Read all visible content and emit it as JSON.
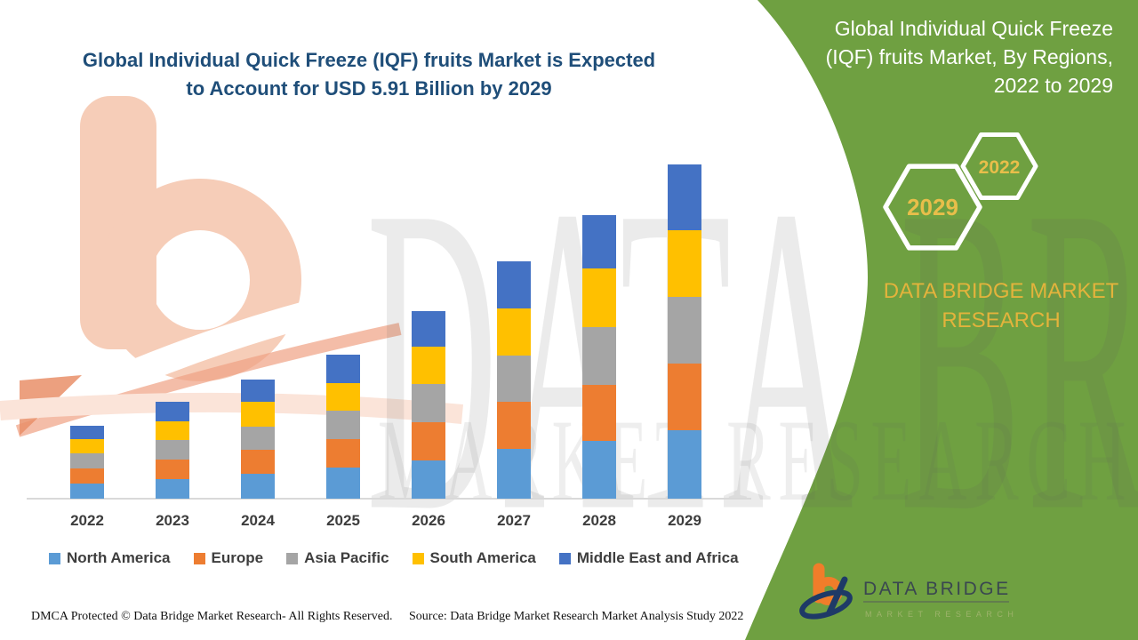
{
  "header": {
    "title_line1": "Global Individual Quick Freeze (IQF) fruits Market is Expected",
    "title_line2": "to Account for USD 5.91 Billion by 2029"
  },
  "side_panel": {
    "heading_line1": "Global Individual Quick Freeze",
    "heading_line2": "(IQF) fruits Market, By Regions,",
    "heading_line3": "2022 to 2029",
    "hexagon_front": "2029",
    "hexagon_back": "2022",
    "brand_line1": "DATA BRIDGE MARKET",
    "brand_line2": "RESEARCH",
    "background_color": "#6FA041",
    "gold_color": "#E3B33C"
  },
  "chart_data": {
    "type": "bar",
    "stacked": true,
    "title": "Global Individual Quick Freeze (IQF) fruits Market is Expected to Account for USD 5.91 Billion by 2029",
    "unit": "USD billion",
    "categories": [
      "2022",
      "2023",
      "2024",
      "2025",
      "2026",
      "2027",
      "2028",
      "2029"
    ],
    "series": [
      {
        "name": "North America",
        "color": "#5B9BD5",
        "values": [
          0.27,
          0.35,
          0.44,
          0.55,
          0.68,
          0.88,
          1.02,
          1.21
        ]
      },
      {
        "name": "Europe",
        "color": "#ED7D31",
        "values": [
          0.26,
          0.34,
          0.42,
          0.5,
          0.68,
          0.84,
          0.99,
          1.18
        ]
      },
      {
        "name": "Asia Pacific",
        "color": "#A5A5A5",
        "values": [
          0.26,
          0.34,
          0.41,
          0.51,
          0.67,
          0.82,
          1.02,
          1.18
        ]
      },
      {
        "name": "South America",
        "color": "#FFC000",
        "values": [
          0.25,
          0.33,
          0.44,
          0.49,
          0.66,
          0.84,
          1.04,
          1.18
        ]
      },
      {
        "name": "Middle East and Africa",
        "color": "#4472C4",
        "values": [
          0.24,
          0.35,
          0.39,
          0.51,
          0.63,
          0.83,
          0.94,
          1.16
        ]
      }
    ],
    "totals_estimated": [
      1.28,
      1.71,
      2.1,
      2.56,
      3.32,
      4.21,
      5.01,
      5.91
    ],
    "anchor_value": "USD 5.91 Billion by 2029",
    "ylim": [
      0,
      6.2
    ],
    "grid": false,
    "y_axis_visible": false,
    "legend_position": "bottom"
  },
  "footer": {
    "left": "DMCA Protected © Data Bridge Market Research- All Rights Reserved.",
    "right": "Source: Data Bridge Market Research Market Analysis Study 2022"
  },
  "logo": {
    "text": "DATA BRIDGE",
    "subtext": "MARKET RESEARCH"
  },
  "watermark": {
    "line1": "DATA BRIDGE",
    "line2": "MARKET RESEARCH"
  }
}
